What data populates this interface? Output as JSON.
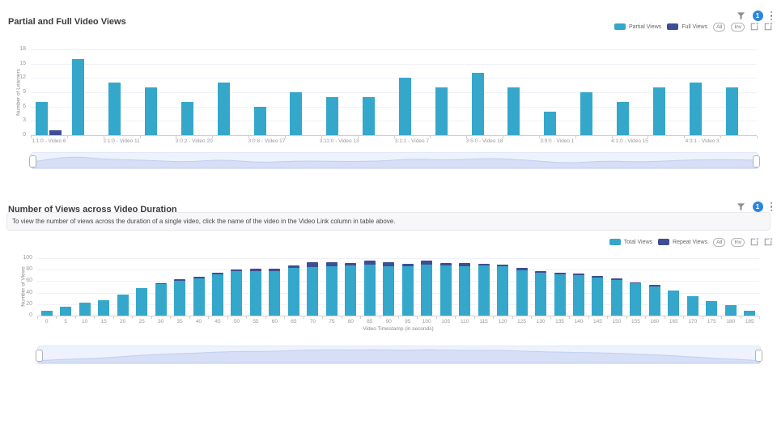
{
  "toolbar": {
    "filter_badge": "1",
    "all_label": "All",
    "inv_label": "Inv"
  },
  "colors": {
    "teal": "#35a7ca",
    "navy": "#3f4d94",
    "badge_blue": "#2b87d8",
    "axis_text": "#98999d",
    "grid_line": "#f0f1f6",
    "slider_bg": "#eef2fc",
    "slider_shadow_fill": "#d2dcf6",
    "slider_shadow_line": "#b9c8ef"
  },
  "chart_data": [
    {
      "type": "bar",
      "stacked": false,
      "title": "Partial and Full Video Views",
      "xlabel": "",
      "ylabel": "Number of Learners",
      "ylim": [
        0,
        18
      ],
      "yticks": [
        0,
        3,
        6,
        9,
        12,
        15,
        18
      ],
      "grid": true,
      "legend_position": "top-right",
      "categories": [
        "1:1:0 - Video 6",
        "",
        "2:1:0 - Video 11",
        "",
        "3:0:2 - Video 20",
        "",
        "3:0:8 - Video 17",
        "",
        "3:11:0 - Video 13",
        "",
        "3:1:1 - Video 7",
        "",
        "3:5:0 - Video 18",
        "",
        "3:9:0 - Video 1",
        "",
        "4:1:0 - Video 15",
        "",
        "4:3:1 - Video 3",
        ""
      ],
      "series": [
        {
          "name": "Partial Views",
          "color": "#35a7ca",
          "values": [
            7,
            16,
            11,
            10,
            7,
            11,
            6,
            9,
            8,
            8,
            12,
            10,
            13,
            10,
            5,
            9,
            7,
            10,
            11,
            10
          ]
        },
        {
          "name": "Full Views",
          "color": "#3f4d94",
          "values": [
            1,
            0,
            0,
            0,
            0,
            0,
            0,
            0,
            0,
            0,
            0,
            0,
            0,
            0,
            0,
            0,
            0,
            0,
            0,
            0
          ]
        }
      ]
    },
    {
      "type": "bar",
      "stacked": true,
      "title": "Number of Views across Video Duration",
      "note": "To view the number of views across the duration of a single video, click the name of the video in the Video Link column in table above.",
      "xlabel": "Video Timestamp (in seconds)",
      "ylabel": "Number of Views",
      "ylim": [
        0,
        100
      ],
      "yticks": [
        0,
        20,
        40,
        60,
        80,
        100
      ],
      "grid": true,
      "legend_position": "top-right",
      "categories": [
        "0",
        "5",
        "10",
        "15",
        "20",
        "25",
        "30",
        "35",
        "40",
        "45",
        "50",
        "55",
        "60",
        "65",
        "70",
        "75",
        "80",
        "85",
        "90",
        "95",
        "100",
        "105",
        "110",
        "115",
        "120",
        "125",
        "130",
        "135",
        "140",
        "145",
        "150",
        "155",
        "160",
        "165",
        "170",
        "175",
        "180",
        "185"
      ],
      "series": [
        {
          "name": "Total Views",
          "color": "#35a7ca",
          "values": [
            8,
            16,
            22,
            27,
            37,
            48,
            55,
            60,
            65,
            72,
            77,
            77,
            78,
            83,
            85,
            86,
            87,
            89,
            86,
            86,
            89,
            87,
            86,
            87,
            86,
            79,
            75,
            72,
            70,
            66,
            62,
            56,
            51,
            43,
            34,
            25,
            18,
            8
          ]
        },
        {
          "name": "Repeat Views",
          "color": "#3f4d94",
          "values": [
            0,
            0,
            0,
            0,
            0,
            0,
            2,
            3,
            3,
            3,
            3,
            4,
            4,
            5,
            8,
            7,
            5,
            7,
            7,
            4,
            7,
            5,
            5,
            3,
            3,
            4,
            3,
            3,
            3,
            3,
            3,
            2,
            2,
            0,
            0,
            0,
            0,
            0
          ]
        }
      ]
    }
  ]
}
